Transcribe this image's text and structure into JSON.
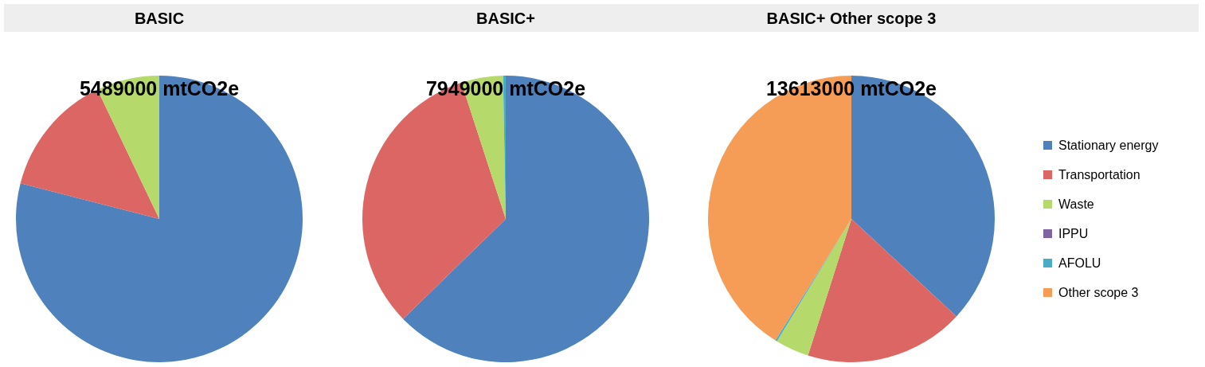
{
  "chart_data": [
    {
      "type": "pie",
      "title": "BASIC",
      "annotations": [
        "5489000 mtCO2e"
      ],
      "categories": [
        null,
        null,
        null,
        null,
        null,
        null
      ],
      "values": [
        79.0,
        13.9,
        7.1,
        0,
        0,
        0
      ],
      "colors": [
        "#4f81bd",
        "#dc6664",
        "#b5d96a",
        "#8064a2",
        "#4bacc6",
        "#f59d56"
      ],
      "legend": false
    },
    {
      "type": "pie",
      "title": "BASIC+",
      "annotations": [
        "7949000 mtCO2e"
      ],
      "categories": [
        null,
        null,
        null,
        null,
        null,
        null
      ],
      "values": [
        62.7,
        32.3,
        4.7,
        0,
        0.3,
        0
      ],
      "colors": [
        "#4f81bd",
        "#dc6664",
        "#b5d96a",
        "#8064a2",
        "#4bacc6",
        "#f59d56"
      ],
      "legend": false
    },
    {
      "type": "pie",
      "title": "BASIC+ Other scope 3",
      "annotations": [
        "13613000 mtCO2e"
      ],
      "categories": [
        "Stationary energy",
        "Transportation",
        "Waste",
        "IPPU",
        "AFOLU",
        "Other scope 3"
      ],
      "values": [
        36.9,
        18.0,
        3.8,
        0,
        0.2,
        41.1
      ],
      "colors": [
        "#4f81bd",
        "#dc6664",
        "#b5d96a",
        "#8064a2",
        "#4bacc6",
        "#f59d56"
      ],
      "legend": "right"
    }
  ]
}
